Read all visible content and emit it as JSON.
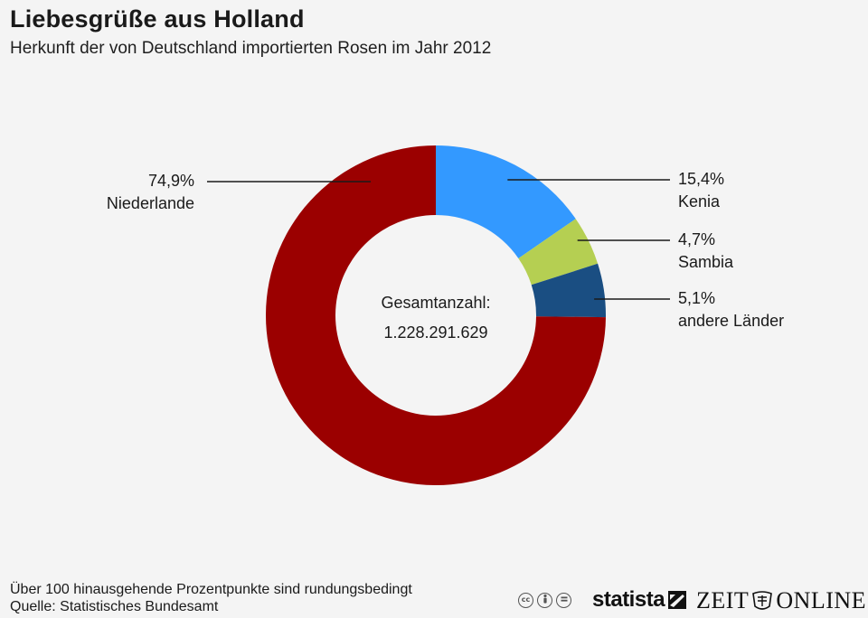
{
  "title": "Liebesgrüße aus Holland",
  "subtitle": "Herkunft der von Deutschland importierten Rosen im Jahr 2012",
  "chart_data": {
    "type": "pie",
    "donut": true,
    "center_label": "Gesamtanzahl:",
    "center_value": "1.228.291.629",
    "slices": [
      {
        "label": "Kenia",
        "value": 15.4,
        "value_label": "15,4%",
        "color": "#3399ff"
      },
      {
        "label": "Sambia",
        "value": 4.7,
        "value_label": "4,7%",
        "color": "#b5cf52"
      },
      {
        "label": "andere Länder",
        "value": 5.1,
        "value_label": "5,1%",
        "color": "#1a4e82"
      },
      {
        "label": "Niederlande",
        "value": 74.9,
        "value_label": "74,9%",
        "color": "#9b0000"
      }
    ]
  },
  "footer": {
    "note": "Über 100 hinausgehende Prozentpunkte sind rundungsbedingt",
    "source": "Quelle: Statistisches Bundesamt"
  },
  "logos": {
    "cc_icons": [
      "cc-icon",
      "by-icon",
      "nd-icon"
    ],
    "statista": "statista",
    "zeit_left": "ZEIT",
    "zeit_right": "ONLINE"
  }
}
